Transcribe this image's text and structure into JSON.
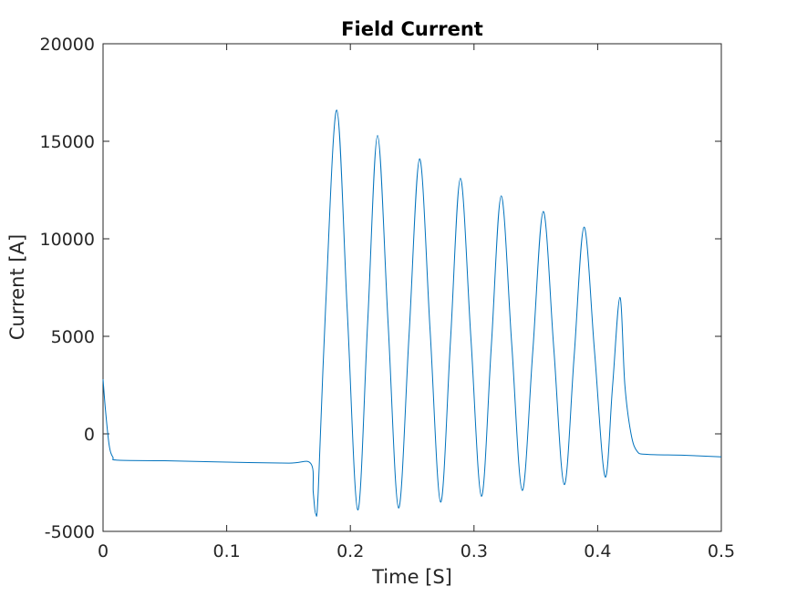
{
  "chart_data": {
    "type": "line",
    "title": "Field Current",
    "x_label": "Time [S]",
    "y_label": "Current [A]",
    "x": [
      0,
      0.002,
      0.005,
      0.008,
      0.012,
      0.05,
      0.1,
      0.15,
      0.168,
      0.17,
      0.172,
      0.174,
      0.18,
      0.189,
      0.1975,
      0.206,
      0.214,
      0.222,
      0.2305,
      0.239,
      0.2475,
      0.256,
      0.2645,
      0.273,
      0.281,
      0.289,
      0.2975,
      0.306,
      0.314,
      0.322,
      0.3305,
      0.339,
      0.3475,
      0.356,
      0.3645,
      0.373,
      0.381,
      0.389,
      0.3975,
      0.406,
      0.412,
      0.418,
      0.422,
      0.427,
      0.432,
      0.44,
      0.47,
      0.5
    ],
    "series": [
      {
        "color": "#0072bd",
        "values": [
          2800,
          1200,
          -600,
          -1200,
          -1350,
          -1380,
          -1450,
          -1500,
          -1520,
          -3000,
          -4100,
          -3000,
          6500,
          16600,
          6300,
          -3900,
          5700,
          15300,
          5700,
          -3800,
          5100,
          14100,
          5300,
          -3500,
          4800,
          13100,
          4900,
          -3200,
          4500,
          12200,
          4600,
          -2900,
          4200,
          11400,
          4400,
          -2600,
          4000,
          10600,
          4200,
          -2200,
          2400,
          7000,
          2500,
          0,
          -900,
          -1050,
          -1100,
          -1180
        ]
      }
    ],
    "xlim": [
      0,
      0.5
    ],
    "xticks": [
      0,
      0.1,
      0.2,
      0.3,
      0.4,
      0.5
    ],
    "ylim": [
      -5000,
      20000
    ],
    "yticks": [
      -5000,
      0,
      5000,
      10000,
      15000,
      20000
    ],
    "grid": false
  }
}
